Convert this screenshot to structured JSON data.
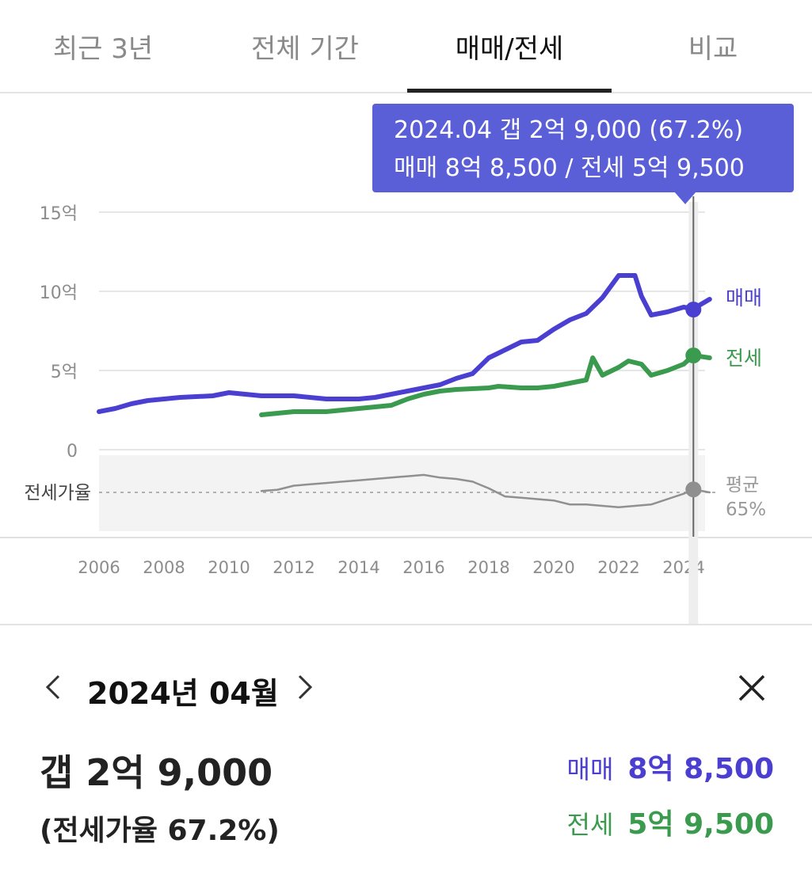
{
  "tabs": [
    {
      "label": "최근 3년",
      "active": false
    },
    {
      "label": "전체 기간",
      "active": false
    },
    {
      "label": "매매/전세",
      "active": true
    },
    {
      "label": "비교",
      "active": false
    }
  ],
  "tooltip": {
    "line1": "2024.04  갭 2억 9,000 (67.2%)",
    "line2": "매매 8억 8,500 / 전세 5억 9,500"
  },
  "detail": {
    "period": "2024년 04월",
    "gap": "갭 2억 9,000",
    "ratio": "(전세가율 67.2%)",
    "sale_label": "매매",
    "sale_value": "8억 8,500",
    "jeonse_label": "전세",
    "jeonse_value": "5억 9,500"
  },
  "colors": {
    "sale": "#4a3fd0",
    "jeonse": "#3a9a4e",
    "ratio": "#909090",
    "tooltip_bg": "#5a5fd8"
  },
  "chart_data": {
    "type": "line",
    "y_unit": "억",
    "y_ticks": [
      "15억",
      "10억",
      "5억",
      "0"
    ],
    "ylim": [
      0,
      15
    ],
    "xlim": [
      2006,
      2025
    ],
    "x_ticks": [
      "2006",
      "2008",
      "2010",
      "2012",
      "2014",
      "2016",
      "2018",
      "2020",
      "2022",
      "2024"
    ],
    "grid": true,
    "series": [
      {
        "name": "매매",
        "color": "#4a3fd0",
        "x": [
          2006.0,
          2006.5,
          2007.0,
          2007.5,
          2008.5,
          2009.5,
          2010.0,
          2011.0,
          2012.0,
          2013.0,
          2014.0,
          2014.5,
          2015.0,
          2015.5,
          2016.0,
          2016.5,
          2017.0,
          2017.5,
          2018.0,
          2018.5,
          2019.0,
          2019.5,
          2020.0,
          2020.5,
          2021.0,
          2021.5,
          2022.0,
          2022.5,
          2022.7,
          2023.0,
          2023.5,
          2024.0,
          2024.3,
          2024.8
        ],
        "values": [
          2.4,
          2.6,
          2.9,
          3.1,
          3.3,
          3.4,
          3.6,
          3.4,
          3.4,
          3.2,
          3.2,
          3.3,
          3.5,
          3.7,
          3.9,
          4.1,
          4.5,
          4.8,
          5.8,
          6.3,
          6.8,
          6.9,
          7.6,
          8.2,
          8.6,
          9.6,
          11.0,
          11.0,
          9.7,
          8.5,
          8.7,
          9.0,
          8.9,
          9.5
        ]
      },
      {
        "name": "전세",
        "color": "#3a9a4e",
        "x": [
          2011.0,
          2011.5,
          2012.0,
          2013.0,
          2014.0,
          2014.5,
          2015.0,
          2015.5,
          2016.0,
          2016.5,
          2017.0,
          2018.0,
          2018.3,
          2019.0,
          2019.5,
          2020.0,
          2020.5,
          2021.0,
          2021.2,
          2021.5,
          2022.0,
          2022.3,
          2022.7,
          2023.0,
          2023.5,
          2024.0,
          2024.3,
          2024.8
        ],
        "values": [
          2.2,
          2.3,
          2.4,
          2.4,
          2.6,
          2.7,
          2.8,
          3.2,
          3.5,
          3.7,
          3.8,
          3.9,
          4.0,
          3.9,
          3.9,
          4.0,
          4.2,
          4.4,
          5.8,
          4.7,
          5.2,
          5.6,
          5.4,
          4.7,
          5.0,
          5.4,
          5.95,
          5.8
        ]
      },
      {
        "name": "전세가율",
        "color": "#909090",
        "x": [
          2011.0,
          2011.5,
          2012.0,
          2012.5,
          2013.0,
          2013.5,
          2014.0,
          2014.5,
          2015.0,
          2015.5,
          2016.0,
          2016.5,
          2017.0,
          2017.5,
          2018.0,
          2018.5,
          2019.0,
          2019.5,
          2020.0,
          2020.5,
          2021.0,
          2021.5,
          2022.0,
          2022.5,
          2023.0,
          2023.5,
          2024.0,
          2024.3,
          2024.8
        ],
        "values": [
          66,
          67,
          70,
          71,
          72,
          73,
          74,
          75,
          76,
          77,
          78,
          76,
          75,
          73,
          68,
          62,
          61,
          60,
          59,
          56,
          56,
          55,
          54,
          55,
          56,
          60,
          64,
          67.2,
          65
        ]
      }
    ],
    "ratio_label": "전세가율",
    "ratio_average_label": "평균",
    "ratio_average_value": "65%",
    "legend_placement": "right",
    "highlight": {
      "x": 2024.3,
      "sale": 8.85,
      "jeonse": 5.95,
      "ratio": 67.2
    }
  }
}
